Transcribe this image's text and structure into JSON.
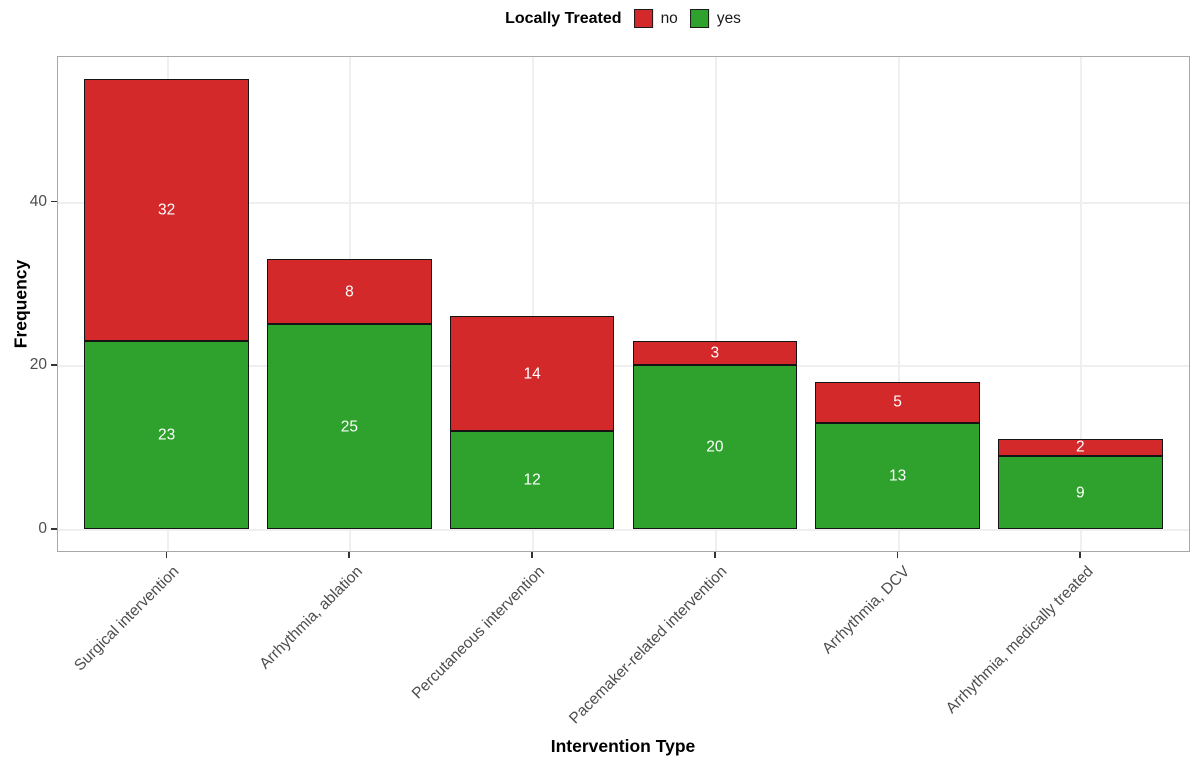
{
  "chart_data": {
    "type": "bar",
    "subtype": "stacked",
    "title": "",
    "xlabel": "Intervention Type",
    "ylabel": "Frequency",
    "categories": [
      "Surgical intervention",
      "Arrhythmia, ablation",
      "Percutaneous intervention",
      "Pacemaker-related intervention",
      "Arrhythmia, DCV",
      "Arrhythmia, medically treated"
    ],
    "series": [
      {
        "name": "no",
        "color": "#d3292a",
        "values": [
          32,
          8,
          14,
          3,
          5,
          2
        ]
      },
      {
        "name": "yes",
        "color": "#2fa12d",
        "values": [
          23,
          25,
          12,
          20,
          13,
          9
        ]
      }
    ],
    "stack_bottom_to_top": [
      "yes",
      "no"
    ],
    "totals": [
      55,
      33,
      26,
      23,
      18,
      11
    ],
    "legend": {
      "title": "Locally Treated",
      "position": "top",
      "entries": [
        {
          "label": "no",
          "color": "#d3292a"
        },
        {
          "label": "yes",
          "color": "#2fa12d"
        }
      ]
    },
    "yticks": [
      0,
      20,
      40
    ],
    "ylim": [
      -2.75,
      57.75
    ],
    "grid": "major-only",
    "bar_label_style": "white text centered in each segment"
  }
}
